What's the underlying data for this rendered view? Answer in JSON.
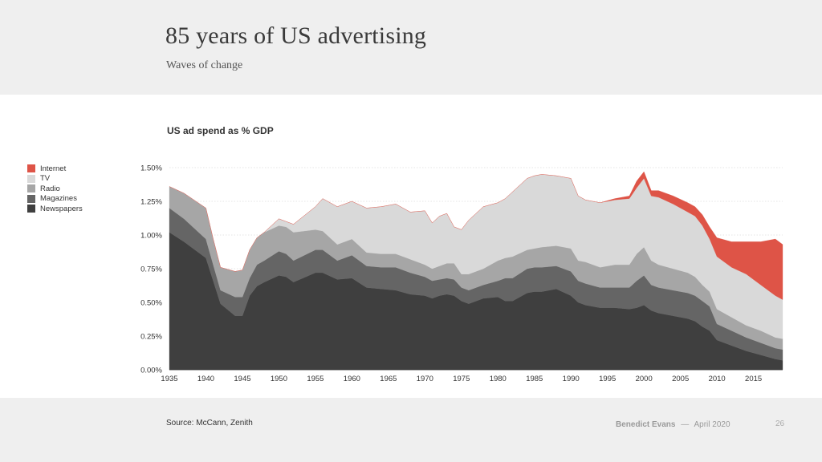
{
  "slide": {
    "title": "85 years of US advertising",
    "subtitle": "Waves of change",
    "source": "Source: McCann, Zenith",
    "author": "Benedict Evans",
    "separator": "—",
    "date": "April 2020",
    "page_number": "26"
  },
  "chart_data": {
    "type": "area",
    "stacked": true,
    "title": "US ad spend as % GDP",
    "xlabel": "",
    "ylabel": "",
    "ylim": [
      0,
      1.5
    ],
    "xlim": [
      1935,
      2019
    ],
    "grid": true,
    "legend_position": "left",
    "y_ticks": [
      {
        "value": 0,
        "label": "0.00%"
      },
      {
        "value": 0.25,
        "label": "0.25%"
      },
      {
        "value": 0.5,
        "label": "0.50%"
      },
      {
        "value": 0.75,
        "label": "0.75%"
      },
      {
        "value": 1.0,
        "label": "1.00%"
      },
      {
        "value": 1.25,
        "label": "1.25%"
      },
      {
        "value": 1.5,
        "label": "1.50%"
      }
    ],
    "x_ticks": [
      "1935",
      "1940",
      "1945",
      "1950",
      "1955",
      "1960",
      "1965",
      "1970",
      "1975",
      "1980",
      "1985",
      "1990",
      "1995",
      "2000",
      "2005",
      "2010",
      "2015"
    ],
    "x": [
      1935,
      1937,
      1940,
      1941,
      1942,
      1944,
      1945,
      1946,
      1947,
      1948,
      1950,
      1951,
      1952,
      1955,
      1956,
      1958,
      1960,
      1962,
      1964,
      1966,
      1968,
      1970,
      1971,
      1972,
      1973,
      1974,
      1975,
      1976,
      1978,
      1980,
      1981,
      1982,
      1984,
      1985,
      1986,
      1988,
      1990,
      1991,
      1992,
      1994,
      1996,
      1998,
      1999,
      2000,
      2001,
      2002,
      2004,
      2006,
      2007,
      2008,
      2009,
      2010,
      2012,
      2014,
      2016,
      2018,
      2019
    ],
    "series": [
      {
        "name": "Newspapers",
        "color": "#3f3f3f",
        "values": [
          1.02,
          0.95,
          0.83,
          0.66,
          0.49,
          0.4,
          0.4,
          0.55,
          0.62,
          0.65,
          0.7,
          0.69,
          0.65,
          0.72,
          0.72,
          0.67,
          0.68,
          0.61,
          0.6,
          0.59,
          0.56,
          0.55,
          0.53,
          0.55,
          0.56,
          0.55,
          0.51,
          0.49,
          0.53,
          0.54,
          0.51,
          0.51,
          0.57,
          0.58,
          0.58,
          0.6,
          0.55,
          0.5,
          0.48,
          0.46,
          0.46,
          0.45,
          0.46,
          0.48,
          0.44,
          0.42,
          0.4,
          0.38,
          0.36,
          0.32,
          0.29,
          0.22,
          0.18,
          0.14,
          0.11,
          0.08,
          0.07
        ]
      },
      {
        "name": "Magazines",
        "color": "#656565",
        "values": [
          0.18,
          0.17,
          0.14,
          0.12,
          0.1,
          0.14,
          0.14,
          0.13,
          0.16,
          0.16,
          0.18,
          0.17,
          0.16,
          0.17,
          0.17,
          0.14,
          0.17,
          0.16,
          0.16,
          0.17,
          0.16,
          0.14,
          0.13,
          0.12,
          0.12,
          0.12,
          0.1,
          0.1,
          0.1,
          0.12,
          0.17,
          0.17,
          0.18,
          0.18,
          0.18,
          0.17,
          0.18,
          0.16,
          0.16,
          0.15,
          0.15,
          0.16,
          0.2,
          0.22,
          0.19,
          0.19,
          0.19,
          0.19,
          0.19,
          0.19,
          0.18,
          0.12,
          0.11,
          0.1,
          0.09,
          0.08,
          0.08
        ]
      },
      {
        "name": "Radio",
        "color": "#a6a6a6",
        "values": [
          0.16,
          0.19,
          0.23,
          0.19,
          0.17,
          0.19,
          0.2,
          0.21,
          0.2,
          0.21,
          0.19,
          0.2,
          0.21,
          0.15,
          0.14,
          0.12,
          0.12,
          0.1,
          0.1,
          0.1,
          0.1,
          0.09,
          0.09,
          0.1,
          0.11,
          0.12,
          0.1,
          0.12,
          0.12,
          0.15,
          0.15,
          0.16,
          0.14,
          0.14,
          0.15,
          0.15,
          0.17,
          0.15,
          0.16,
          0.15,
          0.17,
          0.17,
          0.2,
          0.21,
          0.18,
          0.17,
          0.16,
          0.15,
          0.14,
          0.12,
          0.11,
          0.11,
          0.1,
          0.09,
          0.09,
          0.08,
          0.08
        ]
      },
      {
        "name": "TV",
        "color": "#d9d9d9",
        "values": [
          0.0,
          0.0,
          0.0,
          0.0,
          0.0,
          0.0,
          0.0,
          0.0,
          0.0,
          0.0,
          0.05,
          0.04,
          0.06,
          0.17,
          0.24,
          0.28,
          0.28,
          0.33,
          0.35,
          0.37,
          0.35,
          0.4,
          0.34,
          0.37,
          0.37,
          0.27,
          0.33,
          0.4,
          0.46,
          0.43,
          0.44,
          0.48,
          0.53,
          0.54,
          0.54,
          0.52,
          0.52,
          0.48,
          0.46,
          0.48,
          0.48,
          0.49,
          0.49,
          0.51,
          0.48,
          0.5,
          0.48,
          0.45,
          0.45,
          0.44,
          0.39,
          0.39,
          0.37,
          0.38,
          0.34,
          0.31,
          0.29
        ]
      },
      {
        "name": "Internet",
        "color": "#de5447",
        "values": [
          0,
          0,
          0,
          0,
          0,
          0,
          0,
          0,
          0,
          0,
          0,
          0,
          0,
          0,
          0,
          0,
          0,
          0,
          0,
          0,
          0,
          0,
          0,
          0,
          0,
          0,
          0,
          0,
          0,
          0,
          0,
          0,
          0,
          0,
          0,
          0,
          0,
          0,
          0,
          0,
          0.01,
          0.02,
          0.05,
          0.05,
          0.04,
          0.05,
          0.06,
          0.07,
          0.07,
          0.08,
          0.09,
          0.14,
          0.19,
          0.24,
          0.32,
          0.42,
          0.41
        ]
      }
    ]
  }
}
